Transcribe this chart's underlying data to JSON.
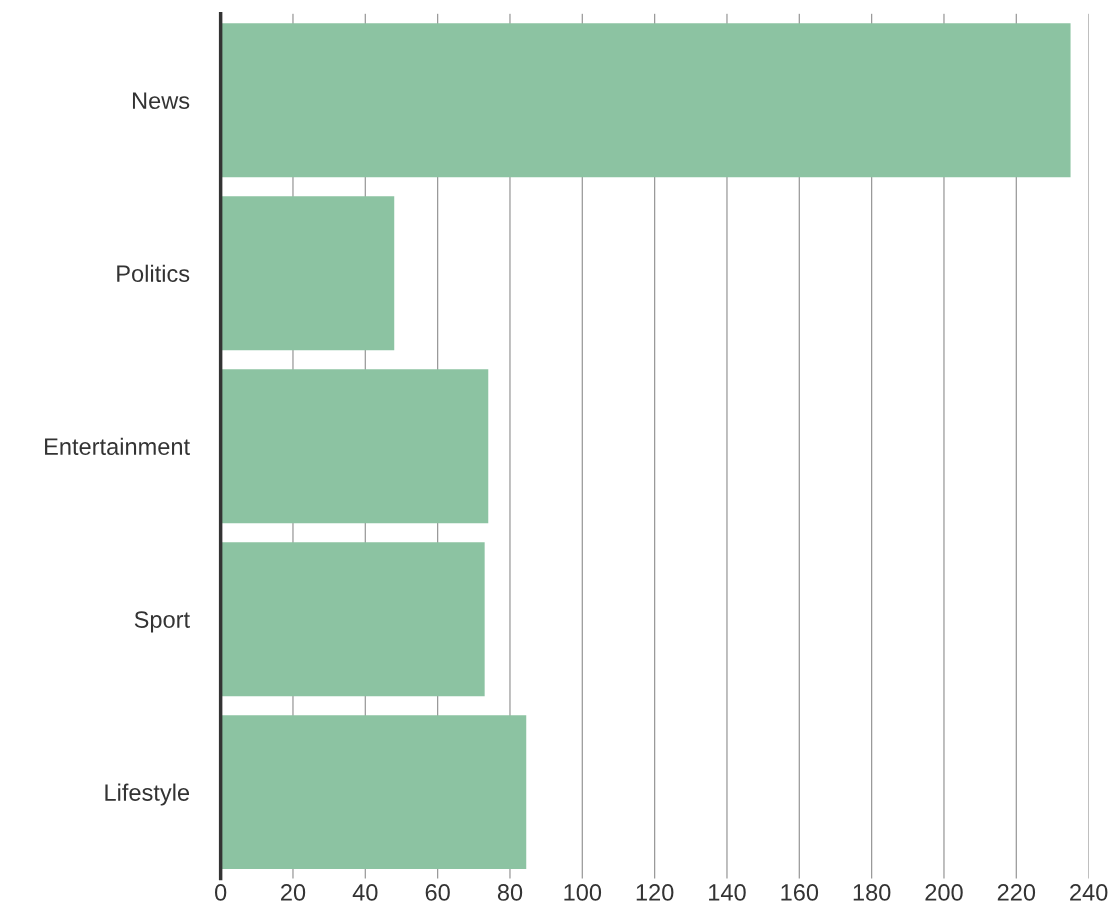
{
  "chart_data": {
    "type": "bar",
    "orientation": "horizontal",
    "categories": [
      "News",
      "Politics",
      "Entertainment",
      "Sport",
      "Lifestyle"
    ],
    "values": [
      235,
      48,
      74,
      73,
      84.5
    ],
    "color": "#8cc3a2",
    "xlim": [
      0,
      240
    ],
    "xticks": [
      0,
      20,
      40,
      60,
      80,
      100,
      120,
      140,
      160,
      180,
      200,
      220,
      240
    ],
    "grid": "x"
  }
}
